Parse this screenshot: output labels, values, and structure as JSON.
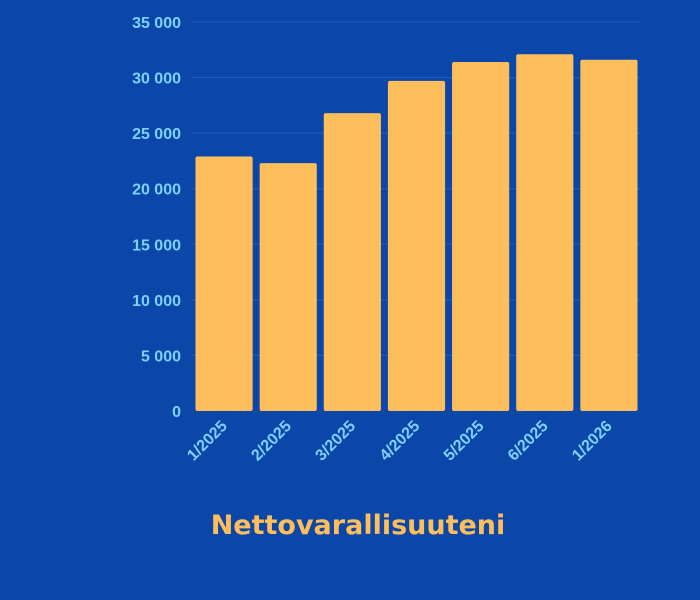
{
  "chart_data": {
    "type": "bar",
    "title": "Nettovarallisuuteni",
    "categories": [
      "1/2025",
      "2/2025",
      "3/2025",
      "4/2025",
      "5/2025",
      "6/2025",
      "1/2026"
    ],
    "values": [
      22900,
      22300,
      26800,
      29700,
      31400,
      32100,
      31600
    ],
    "ylim": [
      0,
      35000
    ],
    "yticks": [
      {
        "value": 0,
        "label": "0"
      },
      {
        "value": 5000,
        "label": "5 000"
      },
      {
        "value": 10000,
        "label": "10 000"
      },
      {
        "value": 15000,
        "label": "15 000"
      },
      {
        "value": 20000,
        "label": "20 000"
      },
      {
        "value": 25000,
        "label": "25 000"
      },
      {
        "value": 30000,
        "label": "30 000"
      },
      {
        "value": 35000,
        "label": "35 000"
      }
    ],
    "xlabel": "",
    "ylabel": "",
    "grid": true,
    "colors": {
      "background": "#0a47a8",
      "bar": "#ffbe5c",
      "tick_text": "#7fd0ff",
      "title": "#ffbe5c",
      "grid": "#1f5cc0"
    }
  }
}
